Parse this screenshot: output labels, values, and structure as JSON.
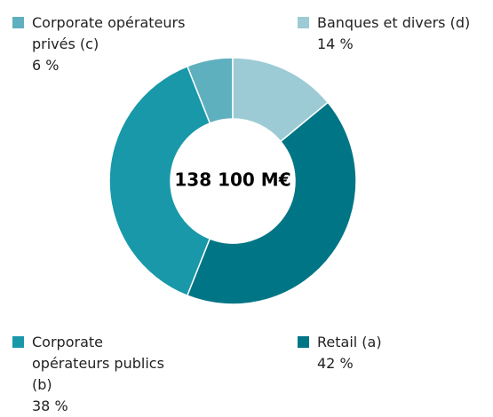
{
  "chart_data": {
    "type": "donut",
    "center_label": "138 100 M€",
    "categories": [
      "Banques et divers (d)",
      "Retail (a)",
      "Corporate opérateurs publics (b)",
      "Corporate opérateurs privés (c)"
    ],
    "values": [
      14,
      42,
      38,
      6
    ],
    "value_labels": [
      "14 %",
      "42 %",
      "38 %",
      "6 %"
    ],
    "colors": [
      "#9dcbd5",
      "#007585",
      "#1898a8",
      "#5fb0bf"
    ]
  }
}
